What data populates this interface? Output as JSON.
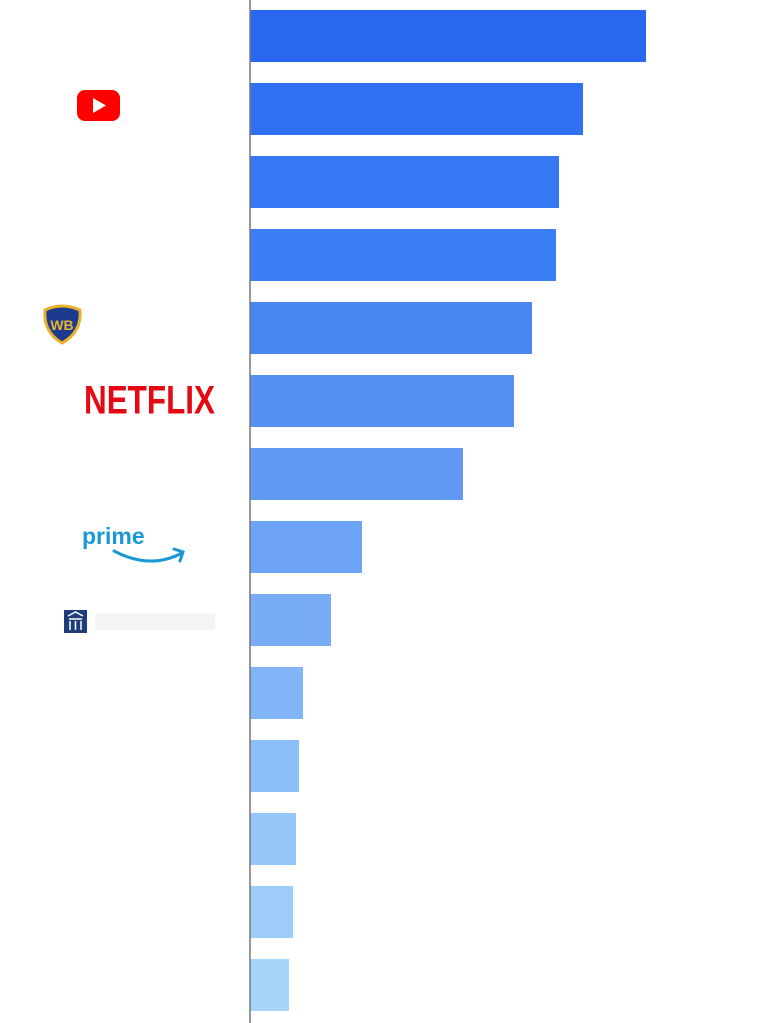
{
  "chart_data": {
    "type": "bar",
    "orientation": "horizontal",
    "categories": [
      null,
      null,
      null,
      null,
      null,
      "NETFLIX",
      null,
      "prime",
      null,
      null,
      null,
      null,
      null,
      null
    ],
    "values": [
      396,
      333,
      309,
      306,
      282,
      264,
      213,
      112,
      81,
      53,
      49,
      46,
      43,
      39
    ],
    "colors": [
      "#2a67f0",
      "#3070f2",
      "#3677f3",
      "#3c7ef3",
      "#4886f3",
      "#5690f4",
      "#6199f5",
      "#6da4f6",
      "#78acf6",
      "#82b5f7",
      "#8cbef8",
      "#95c6f9",
      "#9ecdf9",
      "#a6d4fa"
    ],
    "label_colors": [
      "#e50914",
      "#1a98d5"
    ],
    "xlim": [
      0,
      523
    ]
  }
}
